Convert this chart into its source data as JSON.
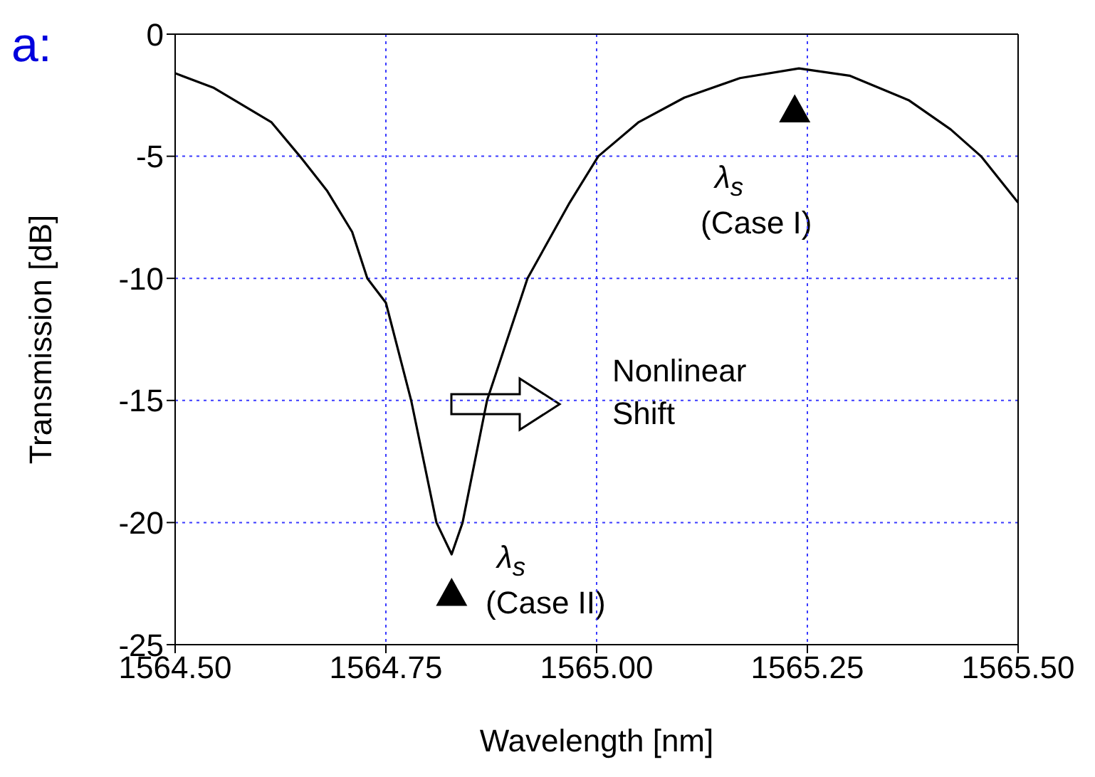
{
  "chart_data": {
    "type": "line",
    "xlabel": "Wavelength [nm]",
    "ylabel": "Transmission [dB]",
    "xlim": [
      1564.5,
      1565.5
    ],
    "ylim": [
      -25,
      0
    ],
    "xticks": [
      {
        "value": 1564.5,
        "label": "1564.50"
      },
      {
        "value": 1564.75,
        "label": "1564.75"
      },
      {
        "value": 1565,
        "label": "1565.00"
      },
      {
        "value": 1565.25,
        "label": "1565.25"
      },
      {
        "value": 1565.5,
        "label": "1565.50"
      }
    ],
    "yticks": [
      0,
      -5,
      -10,
      -15,
      -20,
      -25
    ],
    "grid": true,
    "marker": "none",
    "line_style": "solid",
    "series": [
      {
        "color": "#000000",
        "x": [
          1564.5,
          1564.546,
          1564.614,
          1564.648,
          1564.68,
          1564.71,
          1564.728,
          1564.75,
          1564.78,
          1564.81,
          1564.828,
          1564.841,
          1564.87,
          1564.918,
          1564.968,
          1565.002,
          1565.05,
          1565.104,
          1565.17,
          1565.24,
          1565.3,
          1565.37,
          1565.42,
          1565.456,
          1565.5
        ],
        "values": [
          -1.6,
          -2.2,
          -3.6,
          -5,
          -6.4,
          -8.1,
          -10,
          -11,
          -15,
          -20,
          -21.3,
          -20,
          -15,
          -10,
          -6.9,
          -5,
          -3.6,
          -2.6,
          -1.8,
          -1.4,
          -1.7,
          -2.7,
          -3.9,
          -5,
          -6.9
        ]
      },
      {
        "type": "scatter",
        "marker": "triangle",
        "color": "#000000",
        "x": [
          1565.235,
          1564.828
        ],
        "values": [
          -3.1,
          -22.9
        ]
      }
    ],
    "annotations": [
      "λ$_{s}$",
      "(Case I)",
      "λ$_{s}$",
      "(Case II)",
      "Nonlinear",
      "Shift",
      "a:"
    ]
  }
}
